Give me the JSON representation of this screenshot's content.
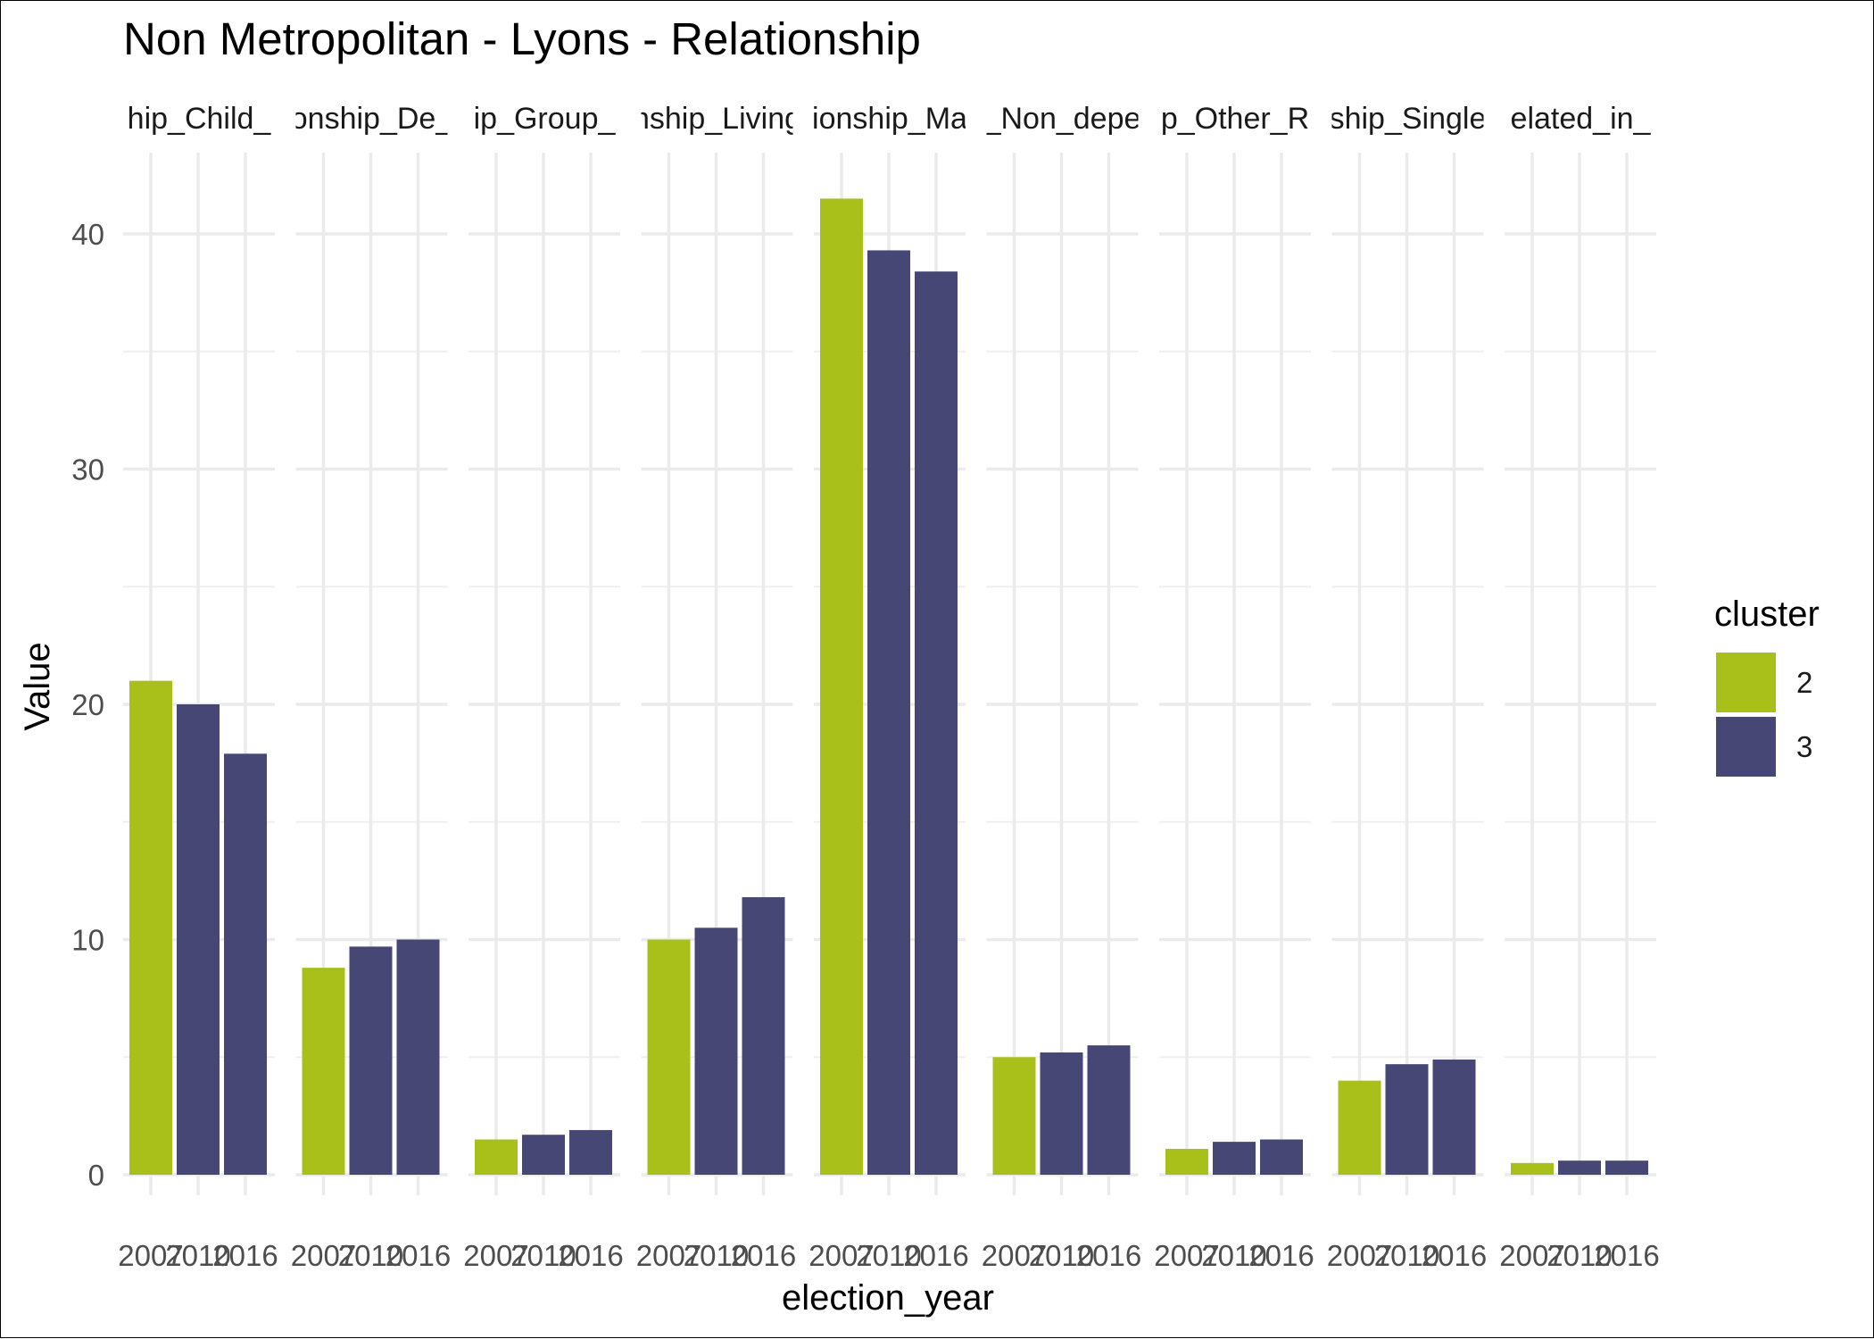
{
  "chart_data": {
    "type": "bar",
    "title": "Non Metropolitan - Lyons - Relationship",
    "xlabel": "election_year",
    "ylabel": "Value",
    "ylim": [
      0,
      44
    ],
    "yticks": [
      0,
      10,
      20,
      30,
      40
    ],
    "x": [
      "2007",
      "2010",
      "2016"
    ],
    "grid": true,
    "legend": {
      "title": "cluster",
      "position": "right",
      "entries": [
        {
          "label": "2",
          "color": "#A9C01B"
        },
        {
          "label": "3",
          "color": "#464774"
        }
      ]
    },
    "facets": [
      {
        "label": "hip_Child_",
        "values": [
          21.0,
          20.0,
          17.9
        ],
        "clusters": [
          "2",
          "3",
          "3"
        ]
      },
      {
        "label": "onship_De_",
        "values": [
          8.8,
          9.7,
          10.0
        ],
        "clusters": [
          "2",
          "3",
          "3"
        ]
      },
      {
        "label": "ip_Group_",
        "values": [
          1.5,
          1.7,
          1.9
        ],
        "clusters": [
          "2",
          "3",
          "3"
        ]
      },
      {
        "label": "nship_Living",
        "values": [
          10.0,
          10.5,
          11.8
        ],
        "clusters": [
          "2",
          "3",
          "3"
        ]
      },
      {
        "label": "ionship_Ma",
        "values": [
          41.5,
          39.3,
          38.4
        ],
        "clusters": [
          "2",
          "3",
          "3"
        ]
      },
      {
        "label": "_Non_depe",
        "values": [
          5.0,
          5.2,
          5.5
        ],
        "clusters": [
          "2",
          "3",
          "3"
        ]
      },
      {
        "label": "p_Other_R",
        "values": [
          1.1,
          1.4,
          1.5
        ],
        "clusters": [
          "2",
          "3",
          "3"
        ]
      },
      {
        "label": "ship_Single",
        "values": [
          4.0,
          4.7,
          4.9
        ],
        "clusters": [
          "2",
          "3",
          "3"
        ]
      },
      {
        "label": "elated_in_",
        "values": [
          0.5,
          0.6,
          0.6
        ],
        "clusters": [
          "2",
          "3",
          "3"
        ]
      }
    ]
  }
}
